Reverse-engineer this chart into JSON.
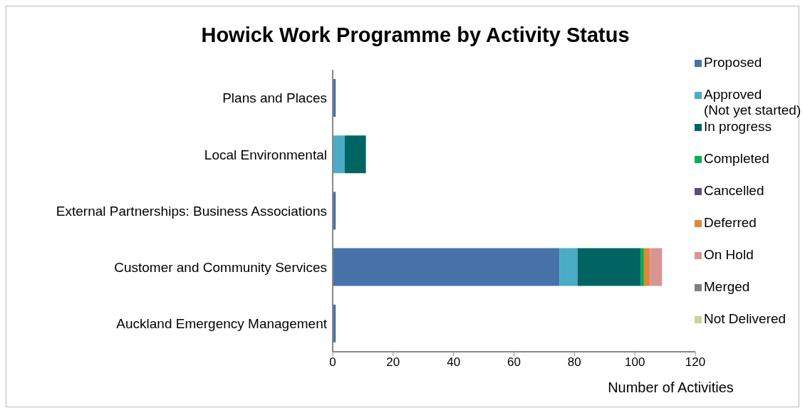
{
  "chart_data": {
    "type": "bar",
    "orientation": "horizontal",
    "stacked": true,
    "title": "Howick Work Programme by Activity Status",
    "xlabel": "Number of Activities",
    "categories": [
      "Plans and Places",
      "Local Environmental",
      "External Partnerships: Business Associations",
      "Customer and Community Services",
      "Auckland Emergency Management"
    ],
    "series": [
      {
        "name": "Proposed",
        "color": "#4672a8",
        "values": [
          1,
          0,
          1,
          75,
          1
        ]
      },
      {
        "name": "Approved (Not yet started)",
        "color": "#4bacc6",
        "values": [
          0,
          4,
          0,
          6,
          0
        ]
      },
      {
        "name": "In progress",
        "color": "#006462",
        "values": [
          0,
          7,
          0,
          21,
          0
        ]
      },
      {
        "name": "Completed",
        "color": "#00b050",
        "values": [
          0,
          0,
          0,
          1,
          0
        ]
      },
      {
        "name": "Cancelled",
        "color": "#604a7b",
        "values": [
          0,
          0,
          0,
          0,
          0
        ]
      },
      {
        "name": "Deferred",
        "color": "#e0883a",
        "values": [
          0,
          0,
          0,
          2,
          0
        ]
      },
      {
        "name": "On Hold",
        "color": "#d99594",
        "values": [
          0,
          0,
          0,
          4,
          0
        ]
      },
      {
        "name": "Merged",
        "color": "#808080",
        "values": [
          0,
          0,
          0,
          0,
          0
        ]
      },
      {
        "name": "Not Delivered",
        "color": "#c3d69b",
        "values": [
          0,
          0,
          0,
          0,
          0
        ]
      }
    ],
    "xlim": [
      0,
      120
    ],
    "xticks": [
      0,
      20,
      40,
      60,
      80,
      100,
      120
    ],
    "grid": false,
    "legend": "right"
  }
}
